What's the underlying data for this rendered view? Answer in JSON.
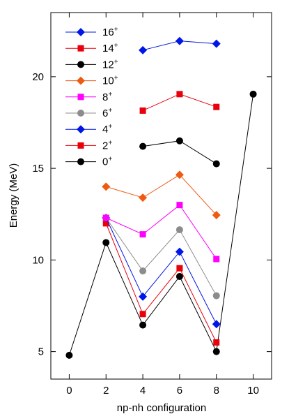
{
  "chart_data": {
    "type": "line",
    "xlabel": "np-nh configuration",
    "ylabel": "Energy (MeV)",
    "xlim": [
      -1,
      11
    ],
    "ylim": [
      3.5,
      23.5
    ],
    "xticks": [
      0,
      2,
      4,
      6,
      8,
      10
    ],
    "yticks": [
      5,
      10,
      15,
      20
    ],
    "legend_position": "top-left",
    "series": [
      {
        "name": "0",
        "sup": "+",
        "color": "#000000",
        "marker": "circle",
        "x": [
          0,
          2,
          4,
          6,
          8,
          10
        ],
        "y": [
          4.8,
          10.95,
          6.45,
          9.1,
          5.0,
          19.05
        ]
      },
      {
        "name": "2",
        "sup": "+",
        "color": "#e8000b",
        "marker": "square",
        "x": [
          2,
          4,
          6,
          8
        ],
        "y": [
          12.0,
          7.05,
          9.55,
          5.5
        ]
      },
      {
        "name": "4",
        "sup": "+",
        "color": "#0016e6",
        "marker": "diamond",
        "x": [
          2,
          4,
          6,
          8
        ],
        "y": [
          12.3,
          8.0,
          10.45,
          6.5
        ]
      },
      {
        "name": "6",
        "sup": "+",
        "color": "#8c8c8c",
        "marker": "circle",
        "x": [
          2,
          4,
          6,
          8
        ],
        "y": [
          12.3,
          9.4,
          11.65,
          8.05
        ]
      },
      {
        "name": "8",
        "sup": "+",
        "color": "#ff00ff",
        "marker": "square",
        "x": [
          2,
          4,
          6,
          8
        ],
        "y": [
          12.3,
          11.4,
          13.0,
          10.05
        ]
      },
      {
        "name": "10",
        "sup": "+",
        "color": "#ee5a11",
        "marker": "diamond",
        "x": [
          2,
          4,
          6,
          8
        ],
        "y": [
          14.0,
          13.4,
          14.65,
          12.45
        ]
      },
      {
        "name": "12",
        "sup": "+",
        "color": "#000000",
        "marker": "circle",
        "x": [
          4,
          6,
          8
        ],
        "y": [
          16.2,
          16.5,
          15.25
        ]
      },
      {
        "name": "14",
        "sup": "+",
        "color": "#e8000b",
        "marker": "square",
        "x": [
          4,
          6,
          8
        ],
        "y": [
          18.15,
          19.05,
          18.35
        ]
      },
      {
        "name": "16",
        "sup": "+",
        "color": "#0016e6",
        "marker": "diamond",
        "x": [
          4,
          6,
          8
        ],
        "y": [
          21.45,
          21.95,
          21.8
        ]
      }
    ]
  }
}
